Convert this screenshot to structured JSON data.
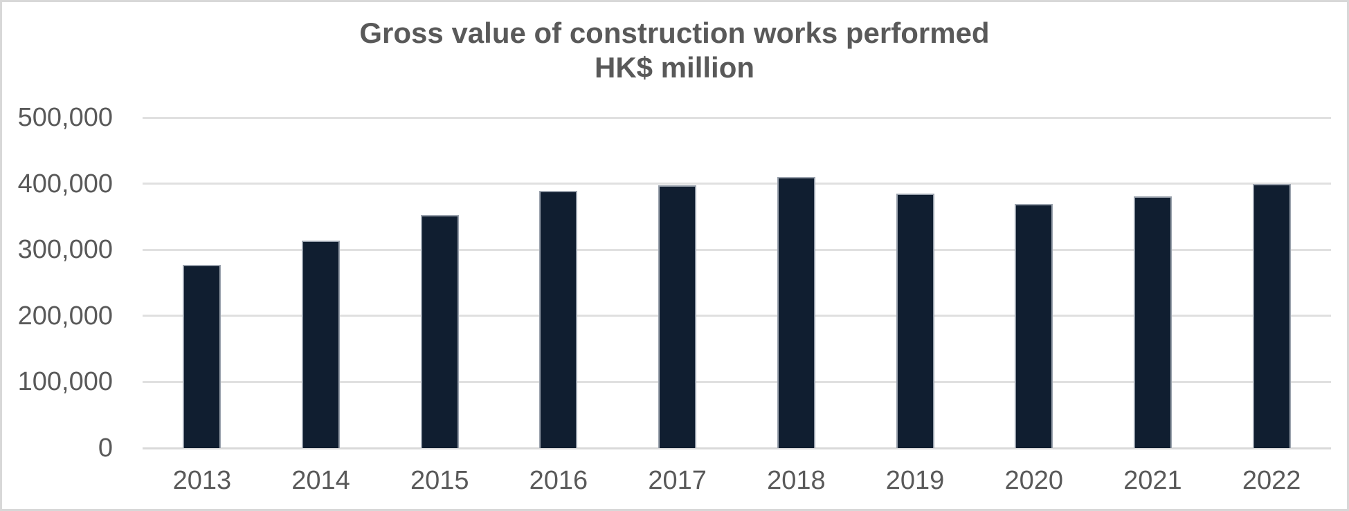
{
  "chart_data": {
    "type": "bar",
    "title": "Gross value of construction works performed",
    "subtitle": "HK$ million",
    "categories": [
      "2013",
      "2014",
      "2015",
      "2016",
      "2017",
      "2018",
      "2019",
      "2020",
      "2021",
      "2022"
    ],
    "values": [
      277000,
      314000,
      352000,
      389000,
      398000,
      410000,
      385000,
      369000,
      381000,
      400000
    ],
    "series": [
      {
        "name": "Gross value of construction works performed (HK$ million)",
        "values": [
          277000,
          314000,
          352000,
          389000,
          398000,
          410000,
          385000,
          369000,
          381000,
          400000
        ]
      }
    ],
    "xlabel": "",
    "ylabel": "",
    "ylim": [
      0,
      500000
    ],
    "yticks": [
      {
        "value": 0,
        "label": "0"
      },
      {
        "value": 100000,
        "label": "100,000"
      },
      {
        "value": 200000,
        "label": "200,000"
      },
      {
        "value": 300000,
        "label": "300,000"
      },
      {
        "value": 400000,
        "label": "400,000"
      },
      {
        "value": 500000,
        "label": "500,000"
      }
    ],
    "grid": "horizontal",
    "legend": "none",
    "colors": {
      "bar_fill": "#101e30",
      "bar_border": "#9aa2ad",
      "gridline": "#e0e0e0",
      "axis_line": "#d9d9d9",
      "text": "#595959",
      "frame_border": "#d8d8d8",
      "background": "#ffffff"
    }
  }
}
